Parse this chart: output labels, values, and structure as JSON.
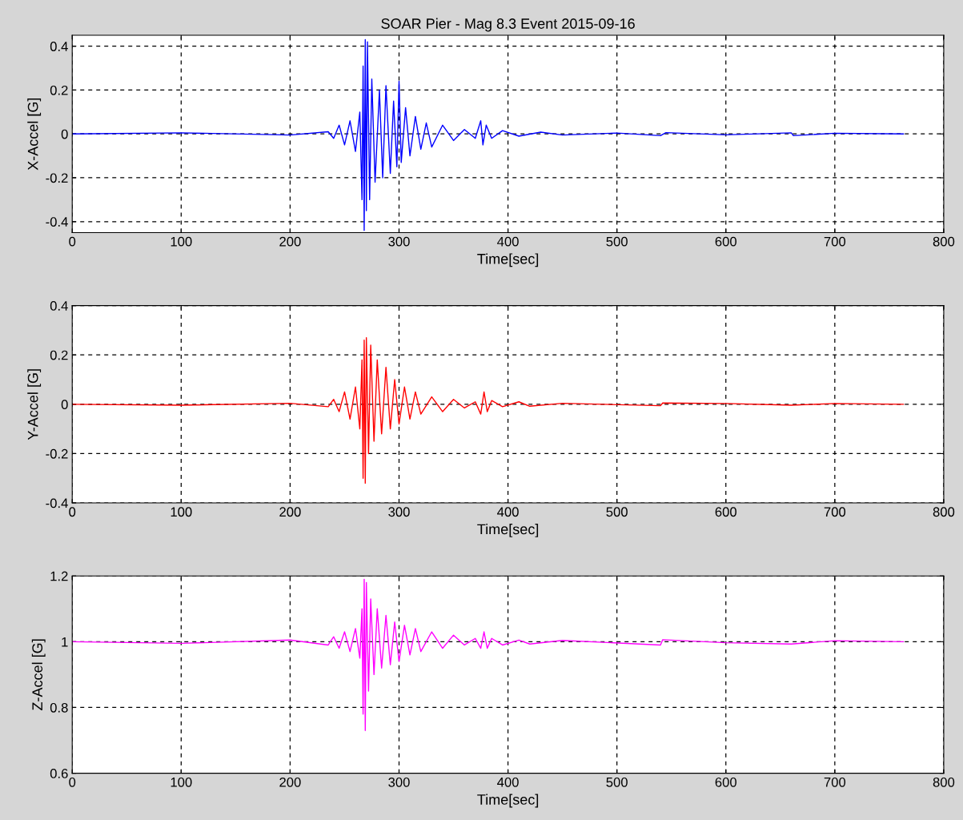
{
  "chart_data": [
    {
      "type": "line",
      "title": "SOAR Pier - Mag 8.3 Event 2015-09-16",
      "xlabel": "Time[sec]",
      "ylabel": "X-Accel [G]",
      "grid": true,
      "line_style": "solid",
      "marker": "none",
      "xlim": [
        0,
        800
      ],
      "xticks": [
        0,
        100,
        200,
        300,
        400,
        500,
        600,
        700,
        800
      ],
      "ylim": [
        -0.45,
        0.45
      ],
      "yticks": [
        -0.4,
        -0.2,
        0,
        0.2,
        0.4
      ],
      "x": [
        0,
        100,
        200,
        235,
        240,
        245,
        250,
        255,
        260,
        264,
        266,
        267,
        268,
        269,
        270,
        271,
        273,
        275,
        278,
        282,
        285,
        288,
        292,
        295,
        298,
        300,
        302,
        306,
        310,
        315,
        320,
        325,
        330,
        340,
        350,
        360,
        370,
        375,
        377,
        380,
        385,
        395,
        410,
        430,
        450,
        500,
        540,
        545,
        600,
        660,
        662,
        700,
        763
      ],
      "series": [
        {
          "color": "#0000ff",
          "values": [
            0,
            0.005,
            -0.005,
            0.01,
            -0.02,
            0.04,
            -0.05,
            0.06,
            -0.08,
            0.1,
            -0.3,
            0.31,
            -0.44,
            0.43,
            -0.35,
            0.42,
            -0.3,
            0.25,
            -0.22,
            0.2,
            -0.2,
            0.22,
            -0.18,
            0.15,
            -0.15,
            0.24,
            -0.13,
            0.12,
            -0.1,
            0.08,
            -0.07,
            0.05,
            -0.06,
            0.04,
            -0.03,
            0.02,
            -0.02,
            0.06,
            -0.05,
            0.04,
            -0.02,
            0.015,
            -0.01,
            0.008,
            -0.005,
            0.004,
            -0.008,
            0.006,
            -0.004,
            0.005,
            -0.008,
            0.003,
            0
          ]
        }
      ]
    },
    {
      "type": "line",
      "xlabel": "Time[sec]",
      "ylabel": "Y-Accel [G]",
      "grid": true,
      "line_style": "solid",
      "marker": "none",
      "xlim": [
        0,
        800
      ],
      "xticks": [
        0,
        100,
        200,
        300,
        400,
        500,
        600,
        700,
        800
      ],
      "ylim": [
        -0.4,
        0.4
      ],
      "yticks": [
        -0.4,
        -0.2,
        0,
        0.2,
        0.4
      ],
      "x": [
        0,
        100,
        200,
        235,
        240,
        245,
        250,
        255,
        260,
        264,
        266,
        267,
        268,
        269,
        270,
        272,
        274,
        277,
        280,
        284,
        288,
        292,
        296,
        300,
        305,
        310,
        315,
        320,
        330,
        340,
        350,
        360,
        370,
        375,
        378,
        381,
        385,
        395,
        410,
        420,
        450,
        540,
        542,
        600,
        660,
        700,
        763
      ],
      "series": [
        {
          "color": "#ff0000",
          "values": [
            0,
            -0.004,
            0.004,
            -0.01,
            0.02,
            -0.03,
            0.05,
            -0.06,
            0.07,
            -0.1,
            0.18,
            -0.3,
            0.26,
            -0.32,
            0.27,
            -0.2,
            0.24,
            -0.15,
            0.18,
            -0.12,
            0.15,
            -0.1,
            0.1,
            -0.08,
            0.07,
            -0.06,
            0.05,
            -0.04,
            0.03,
            -0.03,
            0.02,
            -0.015,
            0.01,
            -0.04,
            0.05,
            -0.03,
            0.015,
            -0.01,
            0.01,
            -0.008,
            0.004,
            -0.006,
            0.005,
            0.003,
            -0.004,
            0.003,
            0
          ]
        }
      ]
    },
    {
      "type": "line",
      "xlabel": "Time[sec]",
      "ylabel": "Z-Accel [G]",
      "grid": true,
      "line_style": "solid",
      "marker": "none",
      "xlim": [
        0,
        800
      ],
      "xticks": [
        0,
        100,
        200,
        300,
        400,
        500,
        600,
        700,
        800
      ],
      "ylim": [
        0.6,
        1.2
      ],
      "yticks": [
        0.6,
        0.8,
        1,
        1.2
      ],
      "x": [
        0,
        100,
        200,
        235,
        240,
        245,
        250,
        255,
        260,
        264,
        266,
        267,
        268,
        269,
        270,
        272,
        274,
        277,
        280,
        284,
        288,
        292,
        296,
        300,
        305,
        310,
        315,
        320,
        330,
        340,
        350,
        360,
        370,
        375,
        378,
        381,
        385,
        395,
        410,
        420,
        450,
        540,
        542,
        600,
        660,
        700,
        763
      ],
      "series": [
        {
          "color": "#ff00ff",
          "values": [
            1,
            0.995,
            1.005,
            0.99,
            1.015,
            0.98,
            1.03,
            0.97,
            1.04,
            0.95,
            1.1,
            0.78,
            1.19,
            0.73,
            1.18,
            0.85,
            1.13,
            0.9,
            1.1,
            0.92,
            1.08,
            0.93,
            1.06,
            0.94,
            1.05,
            0.96,
            1.04,
            0.97,
            1.03,
            0.98,
            1.02,
            0.99,
            1.01,
            0.98,
            1.03,
            0.98,
            1.01,
            0.99,
            1.005,
            0.993,
            1.004,
            0.99,
            1.006,
            0.997,
            0.993,
            1.003,
            1
          ]
        }
      ]
    }
  ]
}
